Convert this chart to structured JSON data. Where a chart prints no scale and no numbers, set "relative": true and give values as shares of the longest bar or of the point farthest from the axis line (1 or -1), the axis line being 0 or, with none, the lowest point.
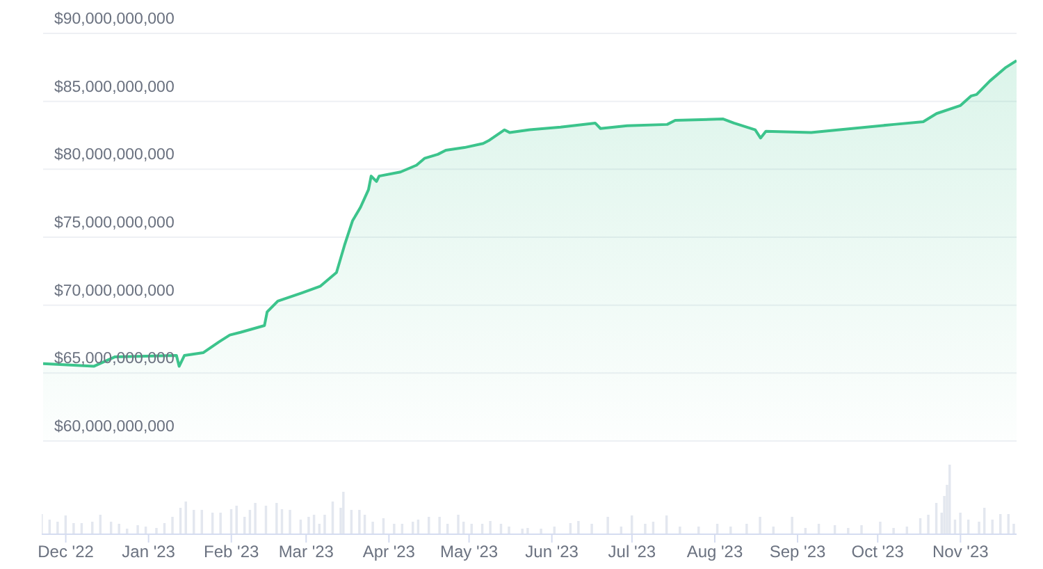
{
  "chart_data": [
    {
      "type": "area",
      "x": [
        "2022-11-22",
        "2022-12-11",
        "2022-12-19",
        "2023-01-11",
        "2023-01-12",
        "2023-01-14",
        "2023-01-21",
        "2023-01-27",
        "2023-01-31",
        "2023-02-04",
        "2023-02-13",
        "2023-02-14",
        "2023-02-18",
        "2023-02-27",
        "2023-03-06",
        "2023-03-12",
        "2023-03-15",
        "2023-03-18",
        "2023-03-21",
        "2023-03-24",
        "2023-03-25",
        "2023-03-27",
        "2023-03-28",
        "2023-04-05",
        "2023-04-11",
        "2023-04-14",
        "2023-04-19",
        "2023-04-22",
        "2023-04-29",
        "2023-05-06",
        "2023-05-08",
        "2023-05-14",
        "2023-05-16",
        "2023-05-23",
        "2023-06-04",
        "2023-06-17",
        "2023-06-19",
        "2023-06-29",
        "2023-07-14",
        "2023-07-17",
        "2023-08-04",
        "2023-08-08",
        "2023-08-16",
        "2023-08-18",
        "2023-08-20",
        "2023-09-06",
        "2023-09-16",
        "2023-10-07",
        "2023-10-18",
        "2023-10-23",
        "2023-11-01",
        "2023-11-05",
        "2023-11-07",
        "2023-11-12",
        "2023-11-18",
        "2023-11-22"
      ],
      "series": [
        {
          "color": "#3cc48c",
          "values": [
            65700000000,
            65500000000,
            66200000000,
            66300000000,
            65500000000,
            66300000000,
            66500000000,
            67300000000,
            67800000000,
            68000000000,
            68500000000,
            69500000000,
            70300000000,
            70900000000,
            71400000000,
            72400000000,
            74400000000,
            76200000000,
            77200000000,
            78500000000,
            79500000000,
            79100000000,
            79500000000,
            79800000000,
            80300000000,
            80800000000,
            81100000000,
            81400000000,
            81600000000,
            81900000000,
            82100000000,
            82900000000,
            82700000000,
            82900000000,
            83100000000,
            83400000000,
            83000000000,
            83200000000,
            83300000000,
            83600000000,
            83700000000,
            83400000000,
            82900000000,
            82300000000,
            82800000000,
            82700000000,
            82900000000,
            83300000000,
            83500000000,
            84100000000,
            84700000000,
            85400000000,
            85500000000,
            86500000000,
            87500000000,
            88000000000
          ]
        }
      ],
      "xlim": [
        "2022-11-22",
        "2023-11-22"
      ],
      "ylim": [
        60000000000,
        90000000000
      ],
      "yticks": [
        {
          "value": 60000000000,
          "label": "$60,000,000,000"
        },
        {
          "value": 65000000000,
          "label": "$65,000,000,000"
        },
        {
          "value": 70000000000,
          "label": "$70,000,000,000"
        },
        {
          "value": 75000000000,
          "label": "$75,000,000,000"
        },
        {
          "value": 80000000000,
          "label": "$80,000,000,000"
        },
        {
          "value": 85000000000,
          "label": "$85,000,000,000"
        },
        {
          "value": 90000000000,
          "label": "$90,000,000,000"
        }
      ],
      "grid": "y",
      "tick_labels": "y"
    },
    {
      "type": "bar",
      "relative": true,
      "x": [
        "2022-11-22",
        "2022-11-25",
        "2022-11-28",
        "2022-12-01",
        "2022-12-04",
        "2022-12-07",
        "2022-12-11",
        "2022-12-14",
        "2022-12-18",
        "2022-12-21",
        "2022-12-24",
        "2022-12-28",
        "2022-12-31",
        "2023-01-04",
        "2023-01-07",
        "2023-01-10",
        "2023-01-13",
        "2023-01-15",
        "2023-01-18",
        "2023-01-21",
        "2023-01-25",
        "2023-01-28",
        "2023-02-01",
        "2023-02-03",
        "2023-02-06",
        "2023-02-08",
        "2023-02-10",
        "2023-02-14",
        "2023-02-18",
        "2023-02-20",
        "2023-02-23",
        "2023-02-27",
        "2023-03-02",
        "2023-03-04",
        "2023-03-06",
        "2023-03-08",
        "2023-03-11",
        "2023-03-14",
        "2023-03-15",
        "2023-03-18",
        "2023-03-21",
        "2023-03-23",
        "2023-03-26",
        "2023-03-30",
        "2023-04-03",
        "2023-04-06",
        "2023-04-10",
        "2023-04-12",
        "2023-04-16",
        "2023-04-20",
        "2023-04-23",
        "2023-04-27",
        "2023-04-29",
        "2023-05-02",
        "2023-05-06",
        "2023-05-09",
        "2023-05-13",
        "2023-05-16",
        "2023-05-21",
        "2023-05-23",
        "2023-05-28",
        "2023-06-02",
        "2023-06-08",
        "2023-06-11",
        "2023-06-16",
        "2023-06-22",
        "2023-06-27",
        "2023-07-01",
        "2023-07-06",
        "2023-07-09",
        "2023-07-14",
        "2023-07-19",
        "2023-07-26",
        "2023-08-02",
        "2023-08-07",
        "2023-08-13",
        "2023-08-18",
        "2023-08-23",
        "2023-08-30",
        "2023-09-04",
        "2023-09-09",
        "2023-09-15",
        "2023-09-20",
        "2023-09-25",
        "2023-10-02",
        "2023-10-07",
        "2023-10-12",
        "2023-10-17",
        "2023-10-20",
        "2023-10-23",
        "2023-10-25",
        "2023-10-26",
        "2023-10-27",
        "2023-10-28",
        "2023-10-30",
        "2023-11-01",
        "2023-11-04",
        "2023-11-08",
        "2023-11-10",
        "2023-11-13",
        "2023-11-16",
        "2023-11-19",
        "2023-11-21"
      ],
      "series": [
        {
          "color": "#e3e7ef",
          "values": [
            0.29,
            0.21,
            0.18,
            0.27,
            0.16,
            0.16,
            0.18,
            0.28,
            0.18,
            0.15,
            0.08,
            0.13,
            0.11,
            0.09,
            0.16,
            0.25,
            0.38,
            0.47,
            0.35,
            0.35,
            0.31,
            0.31,
            0.36,
            0.41,
            0.25,
            0.35,
            0.45,
            0.41,
            0.45,
            0.36,
            0.35,
            0.21,
            0.25,
            0.28,
            0.15,
            0.28,
            0.47,
            0.38,
            0.61,
            0.35,
            0.35,
            0.28,
            0.18,
            0.23,
            0.15,
            0.15,
            0.18,
            0.21,
            0.25,
            0.25,
            0.15,
            0.28,
            0.18,
            0.15,
            0.15,
            0.19,
            0.15,
            0.11,
            0.08,
            0.09,
            0.08,
            0.11,
            0.16,
            0.19,
            0.15,
            0.25,
            0.11,
            0.27,
            0.15,
            0.18,
            0.27,
            0.11,
            0.11,
            0.15,
            0.11,
            0.15,
            0.25,
            0.11,
            0.25,
            0.09,
            0.15,
            0.13,
            0.09,
            0.13,
            0.18,
            0.09,
            0.11,
            0.23,
            0.28,
            0.45,
            0.31,
            0.55,
            0.71,
            1,
            0.21,
            0.31,
            0.21,
            0.18,
            0.38,
            0.21,
            0.29,
            0.29,
            0.15
          ]
        }
      ],
      "xlim": [
        "2022-11-22",
        "2023-11-22"
      ],
      "xticks": [
        {
          "value": "2022-12-01",
          "label": "Dec '22"
        },
        {
          "value": "2023-01-01",
          "label": "Jan '23"
        },
        {
          "value": "2023-02-01",
          "label": "Feb '23"
        },
        {
          "value": "2023-03-01",
          "label": "Mar '23"
        },
        {
          "value": "2023-04-01",
          "label": "Apr '23"
        },
        {
          "value": "2023-05-01",
          "label": "May '23"
        },
        {
          "value": "2023-06-01",
          "label": "Jun '23"
        },
        {
          "value": "2023-07-01",
          "label": "Jul '23"
        },
        {
          "value": "2023-08-01",
          "label": "Aug '23"
        },
        {
          "value": "2023-09-01",
          "label": "Sep '23"
        },
        {
          "value": "2023-10-01",
          "label": "Oct '23"
        },
        {
          "value": "2023-11-01",
          "label": "Nov '23"
        }
      ],
      "tick_labels": "x"
    }
  ]
}
